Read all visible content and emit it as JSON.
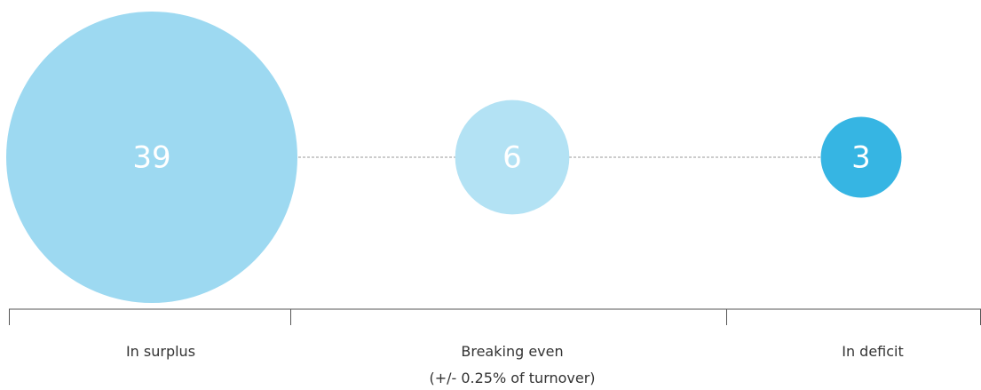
{
  "chart_data": {
    "type": "bubble",
    "categories": [
      "In surplus",
      "Breaking even\n(+/- 0.25% of turnover)",
      "In deficit"
    ],
    "values": [
      39,
      6,
      3
    ],
    "colors": [
      "#9dd9f1",
      "#b3e2f4",
      "#36b5e3"
    ]
  }
}
